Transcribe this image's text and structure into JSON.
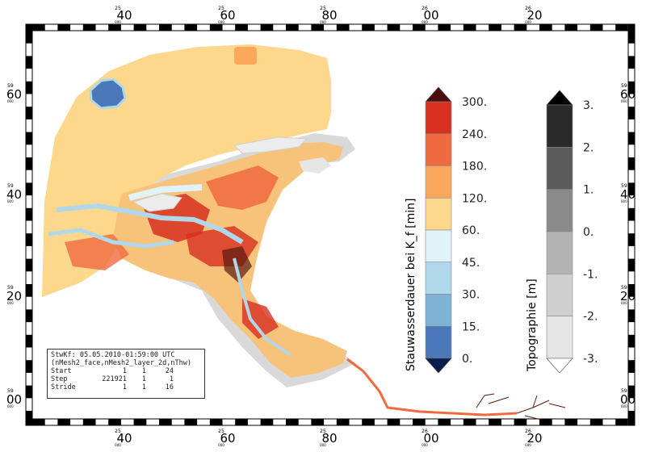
{
  "top_axis": {
    "ticks": [
      {
        "small": "25",
        "big": "40",
        "sub": "000"
      },
      {
        "small": "25",
        "big": "60",
        "sub": "000"
      },
      {
        "small": "25",
        "big": "80",
        "sub": "000"
      },
      {
        "small": "26",
        "big": "00",
        "sub": "000"
      },
      {
        "small": "26",
        "big": "20",
        "sub": "000"
      }
    ]
  },
  "left_axis": {
    "ticks": [
      {
        "small": "59",
        "big": "60",
        "sub": "000"
      },
      {
        "small": "59",
        "big": "40",
        "sub": "000"
      },
      {
        "small": "59",
        "big": "20",
        "sub": "000"
      },
      {
        "small": "59",
        "big": "00",
        "sub": "000"
      }
    ]
  },
  "legend_stau": {
    "title": "Stauwasserdauer bei K_f [min]",
    "labels": [
      "300.",
      "240.",
      "180.",
      "120.",
      "60.",
      "45.",
      "30.",
      "15.",
      "0."
    ],
    "colors": [
      "#d7301f",
      "#f06a40",
      "#fba85c",
      "#fdd78c",
      "#e0f3f8",
      "#b0d8ea",
      "#7fb3d5",
      "#4a78b8"
    ],
    "over_color": "#4a0c0c",
    "under_color": "#0b1d4a"
  },
  "legend_topo": {
    "title": "Topographie [m]",
    "labels": [
      "3.",
      "2.",
      "1.",
      "0.",
      "-1.",
      "-2.",
      "-3."
    ],
    "colors": [
      "#2a2a2a",
      "#5c5c5c",
      "#8a8a8a",
      "#b3b3b3",
      "#cfcfcf",
      "#e6e6e6"
    ],
    "over_color": "#000000",
    "under_color": "#ffffff"
  },
  "info_box": {
    "title": "StwKf: 05.05.2010-01:59:00 UTC",
    "subtitle": "(nMesh2_face,nMesh2_layer_2d,nThw)",
    "rows": [
      {
        "label": "Start",
        "a": "1",
        "b": "1",
        "c": "24"
      },
      {
        "label": "Step",
        "a": "221921",
        "b": "1",
        "c": "1"
      },
      {
        "label": "Stride",
        "a": "1",
        "b": "1",
        "c": "16"
      }
    ]
  },
  "map_colors": {
    "sea": "#fdd78c",
    "shallow": "#e0f3f8",
    "land_dry": "#d9d9d9",
    "channel": "#b0d8ea",
    "deep_blue": "#4a78b8",
    "hot": "#d7301f",
    "orange": "#f06a40",
    "dark": "#5a1a10"
  }
}
